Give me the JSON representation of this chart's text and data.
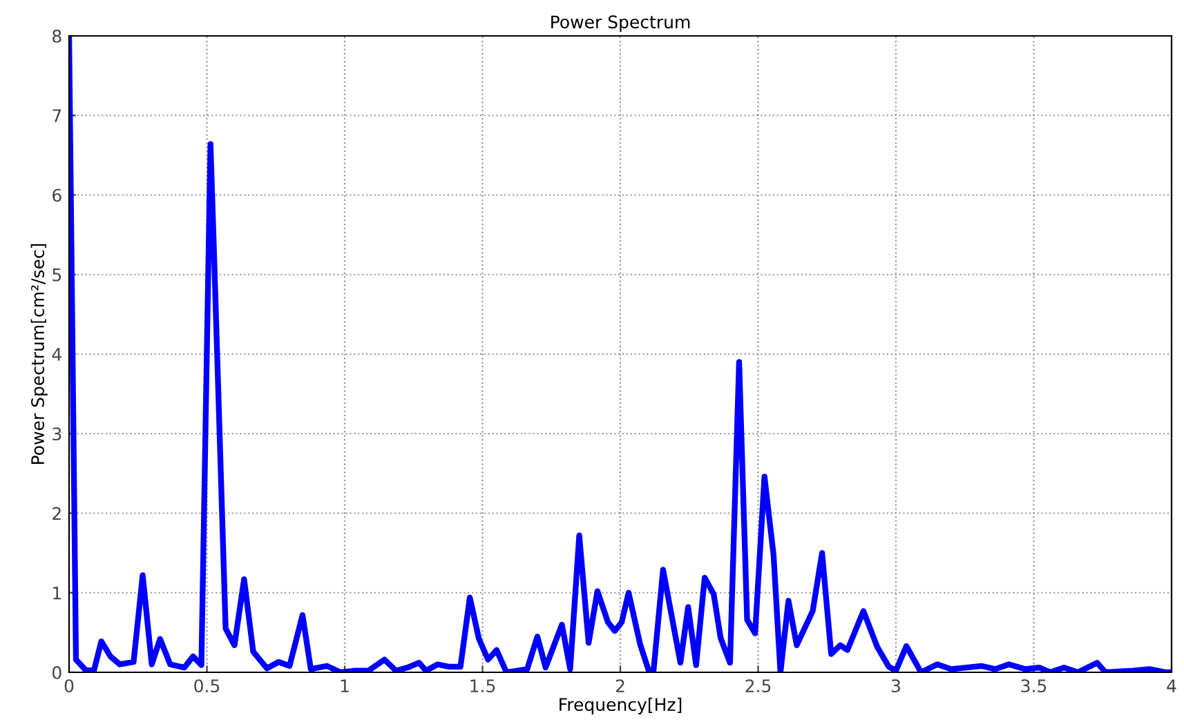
{
  "chart_data": {
    "type": "line",
    "title": "Power Spectrum",
    "xlabel": "Frequency[Hz]",
    "ylabel": "Power Spectrum[cm²/sec]",
    "xlim": [
      0,
      4
    ],
    "ylim": [
      0,
      8
    ],
    "xticks": [
      0,
      0.5,
      1,
      1.5,
      2,
      2.5,
      3,
      3.5,
      4
    ],
    "yticks": [
      0,
      1,
      2,
      3,
      4,
      5,
      6,
      7,
      8
    ],
    "grid": true,
    "line_style": "solid",
    "marker": "none",
    "series": [
      {
        "color": "#0000ff",
        "x": [
          0,
          0.025,
          0.06,
          0.09,
          0.117,
          0.15,
          0.184,
          0.234,
          0.267,
          0.3,
          0.33,
          0.367,
          0.418,
          0.45,
          0.48,
          0.513,
          0.526,
          0.568,
          0.6,
          0.635,
          0.668,
          0.718,
          0.76,
          0.8,
          0.847,
          0.877,
          0.935,
          0.985,
          1.036,
          1.086,
          1.144,
          1.186,
          1.228,
          1.27,
          1.295,
          1.337,
          1.378,
          1.42,
          1.454,
          1.487,
          1.52,
          1.551,
          1.587,
          1.662,
          1.699,
          1.729,
          1.788,
          1.818,
          1.851,
          1.885,
          1.917,
          1.955,
          1.98,
          2.005,
          2.03,
          2.072,
          2.105,
          2.12,
          2.155,
          2.218,
          2.246,
          2.275,
          2.306,
          2.339,
          2.364,
          2.398,
          2.431,
          2.46,
          2.489,
          2.523,
          2.556,
          2.581,
          2.61,
          2.64,
          2.698,
          2.732,
          2.765,
          2.798,
          2.824,
          2.882,
          2.932,
          2.974,
          3.0,
          3.038,
          3.091,
          3.15,
          3.2,
          3.31,
          3.36,
          3.41,
          3.47,
          3.52,
          3.56,
          3.61,
          3.66,
          3.73,
          3.76,
          3.86,
          3.92,
          3.98,
          4.0
        ],
        "values": [
          8,
          0.16,
          0.03,
          0.02,
          0.39,
          0.2,
          0.1,
          0.13,
          1.22,
          0.1,
          0.42,
          0.1,
          0.06,
          0.2,
          0.09,
          6.64,
          5.26,
          0.55,
          0.34,
          1.17,
          0.26,
          0.05,
          0.13,
          0.08,
          0.72,
          0.04,
          0.08,
          0,
          0.02,
          0.02,
          0.16,
          0.02,
          0.06,
          0.12,
          0.02,
          0.1,
          0.07,
          0.07,
          0.94,
          0.42,
          0.16,
          0.28,
          0,
          0.04,
          0.45,
          0.06,
          0.6,
          0.04,
          1.72,
          0.37,
          1.02,
          0.63,
          0.52,
          0.63,
          1.0,
          0.35,
          0,
          0,
          1.29,
          0.12,
          0.82,
          0.09,
          1.19,
          0.98,
          0.43,
          0.12,
          3.9,
          0.66,
          0.49,
          2.46,
          1.47,
          0,
          0.9,
          0.34,
          0.77,
          1.5,
          0.23,
          0.34,
          0.28,
          0.77,
          0.32,
          0.07,
          0.02,
          0.33,
          0,
          0.1,
          0.04,
          0.08,
          0.04,
          0.1,
          0.04,
          0.06,
          0,
          0.06,
          0,
          0.12,
          0,
          0.02,
          0.04,
          0,
          0
        ]
      }
    ]
  }
}
